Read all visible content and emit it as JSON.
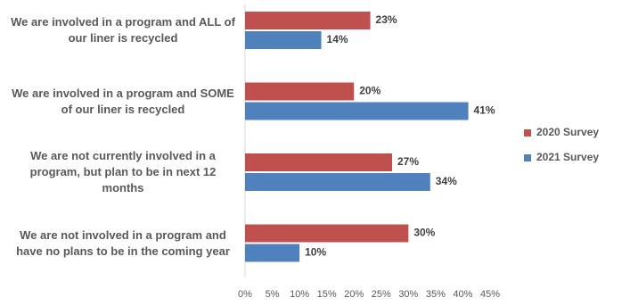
{
  "chart_data": {
    "type": "bar",
    "orientation": "horizontal",
    "categories": [
      "We are involved in a program and ALL of our liner is recycled",
      "We are involved in a program and SOME of our liner is recycled",
      "We are not currently involved in a program, but plan to be in next 12 months",
      "We are not involved in a program and have no plans to be in the coming year"
    ],
    "series": [
      {
        "name": "2020 Survey",
        "color": "#c0504d",
        "values": [
          23,
          20,
          27,
          30
        ],
        "value_labels": [
          "23%",
          "20%",
          "27%",
          "30%"
        ]
      },
      {
        "name": "2021 Survey",
        "color": "#4f81bd",
        "values": [
          14,
          41,
          34,
          10
        ],
        "value_labels": [
          "14%",
          "41%",
          "34%",
          "10%"
        ]
      }
    ],
    "xlim": [
      0,
      45
    ],
    "xticks": [
      {
        "value": 0,
        "label": "0%"
      },
      {
        "value": 5,
        "label": "5%"
      },
      {
        "value": 10,
        "label": "10%"
      },
      {
        "value": 15,
        "label": "15%"
      },
      {
        "value": 20,
        "label": "20%"
      },
      {
        "value": 25,
        "label": "25%"
      },
      {
        "value": 30,
        "label": "30%"
      },
      {
        "value": 35,
        "label": "35%"
      },
      {
        "value": 40,
        "label": "40%"
      },
      {
        "value": 45,
        "label": "45%"
      }
    ],
    "grid": false,
    "legend": "right"
  }
}
